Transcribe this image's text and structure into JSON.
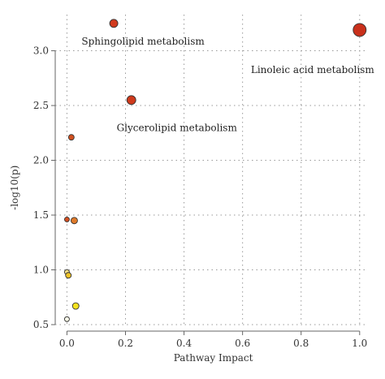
{
  "chart_data": {
    "type": "scatter",
    "xlabel": "Pathway Impact",
    "ylabel": "-log10(p)",
    "xlim": [
      -0.04,
      1.02
    ],
    "ylim": [
      0.5,
      3.33
    ],
    "xticks": [
      "0.0",
      "0.2",
      "0.4",
      "0.6",
      "0.8",
      "1.0"
    ],
    "yticks": [
      "0.5",
      "1.0",
      "1.5",
      "2.0",
      "2.5",
      "3.0"
    ],
    "grid": true,
    "points": [
      {
        "x": 0.16,
        "y": 3.25,
        "color": "#d13a1e",
        "size": 5,
        "label": "Sphingolipid metabolism"
      },
      {
        "x": 1.0,
        "y": 3.19,
        "color": "#c9301b",
        "size": 8,
        "label": "Linoleic acid metabolism"
      },
      {
        "x": 0.22,
        "y": 2.55,
        "color": "#cf3a1c",
        "size": 5.5,
        "label": "Glycerolipid metabolism"
      },
      {
        "x": 0.015,
        "y": 2.21,
        "color": "#d0501f",
        "size": 3.5,
        "label": ""
      },
      {
        "x": 0.0,
        "y": 1.46,
        "color": "#d45022",
        "size": 3,
        "label": ""
      },
      {
        "x": 0.025,
        "y": 1.45,
        "color": "#df7a2a",
        "size": 4,
        "label": ""
      },
      {
        "x": 0.0,
        "y": 0.98,
        "color": "#f5e088",
        "size": 3,
        "label": ""
      },
      {
        "x": 0.005,
        "y": 0.95,
        "color": "#f0c326",
        "size": 3.5,
        "label": ""
      },
      {
        "x": 0.03,
        "y": 0.67,
        "color": "#f5e21e",
        "size": 4,
        "label": ""
      },
      {
        "x": 0.0,
        "y": 0.55,
        "color": "#fbfbe8",
        "size": 3,
        "label": ""
      }
    ]
  }
}
